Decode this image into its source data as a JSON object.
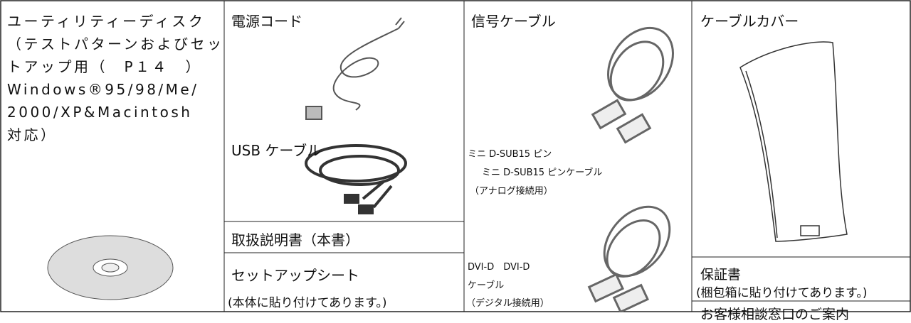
{
  "disk": {
    "lines": [
      "ユーティリティーディスク",
      "（テストパターンおよびセッ",
      "トアップ用（　P１４　）",
      "Windows®95/98/Me/",
      "2000/XP&Macintosh",
      "対応）"
    ]
  },
  "power_cord": {
    "label": "電源コード"
  },
  "usb_cable": {
    "label": "USB ケーブル"
  },
  "manual": {
    "label": "取扱説明書（本書）"
  },
  "setup_sheet": {
    "label": "セットアップシート",
    "note": "(本体に貼り付けてあります。)"
  },
  "signal_cable": {
    "label": "信号ケーブル",
    "dsub_lines": [
      "ミニ D-SUB15 ピン",
      "ミニ D-SUB15 ピンケーブル",
      "（アナログ接続用）"
    ],
    "dvi_lines": [
      "DVI-D　DVI-D",
      "ケーブル",
      "（デジタル接続用）"
    ]
  },
  "cable_cover": {
    "label": "ケーブルカバー"
  },
  "warranty": {
    "label": "保証書",
    "note": "(梱包箱に貼り付けてあります。)"
  },
  "support": {
    "label": "お客様相談窓口のご案内"
  }
}
